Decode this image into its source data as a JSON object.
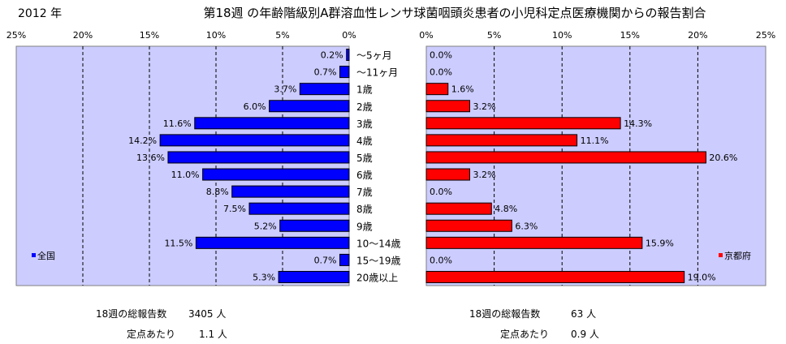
{
  "header": {
    "year": "2012 年",
    "title": "第18週 の年齢階級別A群溶血性レンサ球菌咽頭炎患者の小児科定点医療機関からの報告割合"
  },
  "chart_data": [
    {
      "type": "bar",
      "orientation": "horizontal",
      "direction": "right-to-left",
      "xlim": [
        0,
        25
      ],
      "xticks": [
        "25%",
        "20%",
        "15%",
        "10%",
        "5%",
        "0%"
      ],
      "grid": true,
      "legend": "bottom-left",
      "color": "#0000ff",
      "categories": [
        "～5ヶ月",
        "～11ヶ月",
        "1歳",
        "2歳",
        "3歳",
        "4歳",
        "5歳",
        "6歳",
        "7歳",
        "8歳",
        "9歳",
        "10～14歳",
        "15～19歳",
        "20歳以上"
      ],
      "series": [
        {
          "name": "全国",
          "values": [
            0.2,
            0.7,
            3.7,
            6.0,
            11.6,
            14.2,
            13.6,
            11.0,
            8.8,
            7.5,
            5.2,
            11.5,
            0.7,
            5.3
          ],
          "labels": [
            "0.2%",
            "0.7%",
            "3.7%",
            "6.0%",
            "11.6%",
            "14.2%",
            "13.6%",
            "11.0%",
            "8.8%",
            "7.5%",
            "5.2%",
            "11.5%",
            "0.7%",
            "5.3%"
          ]
        }
      ]
    },
    {
      "type": "bar",
      "orientation": "horizontal",
      "direction": "left-to-right",
      "xlim": [
        0,
        25
      ],
      "xticks": [
        "0%",
        "5%",
        "10%",
        "15%",
        "20%",
        "25%"
      ],
      "grid": true,
      "legend": "bottom-right",
      "color": "#ff0000",
      "categories": [
        "～5ヶ月",
        "～11ヶ月",
        "1歳",
        "2歳",
        "3歳",
        "4歳",
        "5歳",
        "6歳",
        "7歳",
        "8歳",
        "9歳",
        "10～14歳",
        "15～19歳",
        "20歳以上"
      ],
      "series": [
        {
          "name": "京都府",
          "values": [
            0.0,
            0.0,
            1.6,
            3.2,
            14.3,
            11.1,
            20.6,
            3.2,
            0.0,
            4.8,
            6.3,
            15.9,
            0.0,
            19.0
          ],
          "labels": [
            "0.0%",
            "0.0%",
            "1.6%",
            "3.2%",
            "14.3%",
            "11.1%",
            "20.6%",
            "3.2%",
            "0.0%",
            "4.8%",
            "6.3%",
            "15.9%",
            "0.0%",
            "19.0%"
          ]
        }
      ]
    }
  ],
  "stats": {
    "national": {
      "total_label": "18週の総報告数",
      "total_value": "3405 人",
      "per_site_label": "定点あたり",
      "per_site_value": "1.1 人"
    },
    "kyoto": {
      "total_label": "18週の総報告数",
      "total_value": "63 人",
      "per_site_label": "定点あたり",
      "per_site_value": "0.9 人"
    }
  }
}
